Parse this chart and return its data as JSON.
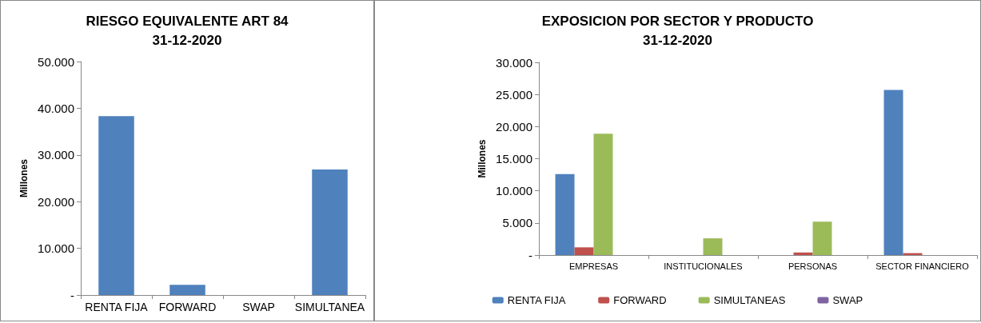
{
  "chart_data": [
    {
      "type": "bar",
      "title": "RIESGO EQUIVALENTE ART 84\n31-12-2020",
      "ylabel": "Millones",
      "categories": [
        "RENTA FIJA",
        "FORWARD",
        "SWAP",
        "SIMULTANEA"
      ],
      "series": [
        {
          "color": "#4f81bd",
          "values": [
            38300,
            2200,
            0,
            26900
          ]
        }
      ],
      "ylim": [
        0,
        50000
      ],
      "yticks": [
        {
          "value": 0,
          "label": "-"
        },
        {
          "value": 10000,
          "label": "10.000"
        },
        {
          "value": 20000,
          "label": "20.000"
        },
        {
          "value": 30000,
          "label": "30.000"
        },
        {
          "value": 40000,
          "label": "40.000"
        },
        {
          "value": 50000,
          "label": "50.000"
        }
      ],
      "grid": false,
      "legend": false
    },
    {
      "type": "bar",
      "title": "EXPOSICION POR SECTOR Y PRODUCTO\n31-12-2020",
      "ylabel": "Millones",
      "categories": [
        "EMPRESAS",
        "INSTITUCIONALES",
        "PERSONAS",
        "SECTOR FINANCIERO"
      ],
      "series": [
        {
          "name": "RENTA FIJA",
          "color": "#4f81bd",
          "values": [
            12600,
            0,
            0,
            25700
          ]
        },
        {
          "name": "FORWARD",
          "color": "#c0504d",
          "values": [
            1200,
            0,
            400,
            300
          ]
        },
        {
          "name": "SIMULTANEAS",
          "color": "#9bbb59",
          "values": [
            18900,
            2600,
            5200,
            0
          ]
        },
        {
          "name": "SWAP",
          "color": "#8064a2",
          "values": [
            0,
            0,
            0,
            0
          ]
        }
      ],
      "ylim": [
        0,
        30000
      ],
      "yticks": [
        {
          "value": 0,
          "label": "-"
        },
        {
          "value": 5000,
          "label": "5.000"
        },
        {
          "value": 10000,
          "label": "10.000"
        },
        {
          "value": 15000,
          "label": "15.000"
        },
        {
          "value": 20000,
          "label": "20.000"
        },
        {
          "value": 25000,
          "label": "25.000"
        },
        {
          "value": 30000,
          "label": "30.000"
        }
      ],
      "grid": false,
      "legend": "bottom"
    }
  ]
}
